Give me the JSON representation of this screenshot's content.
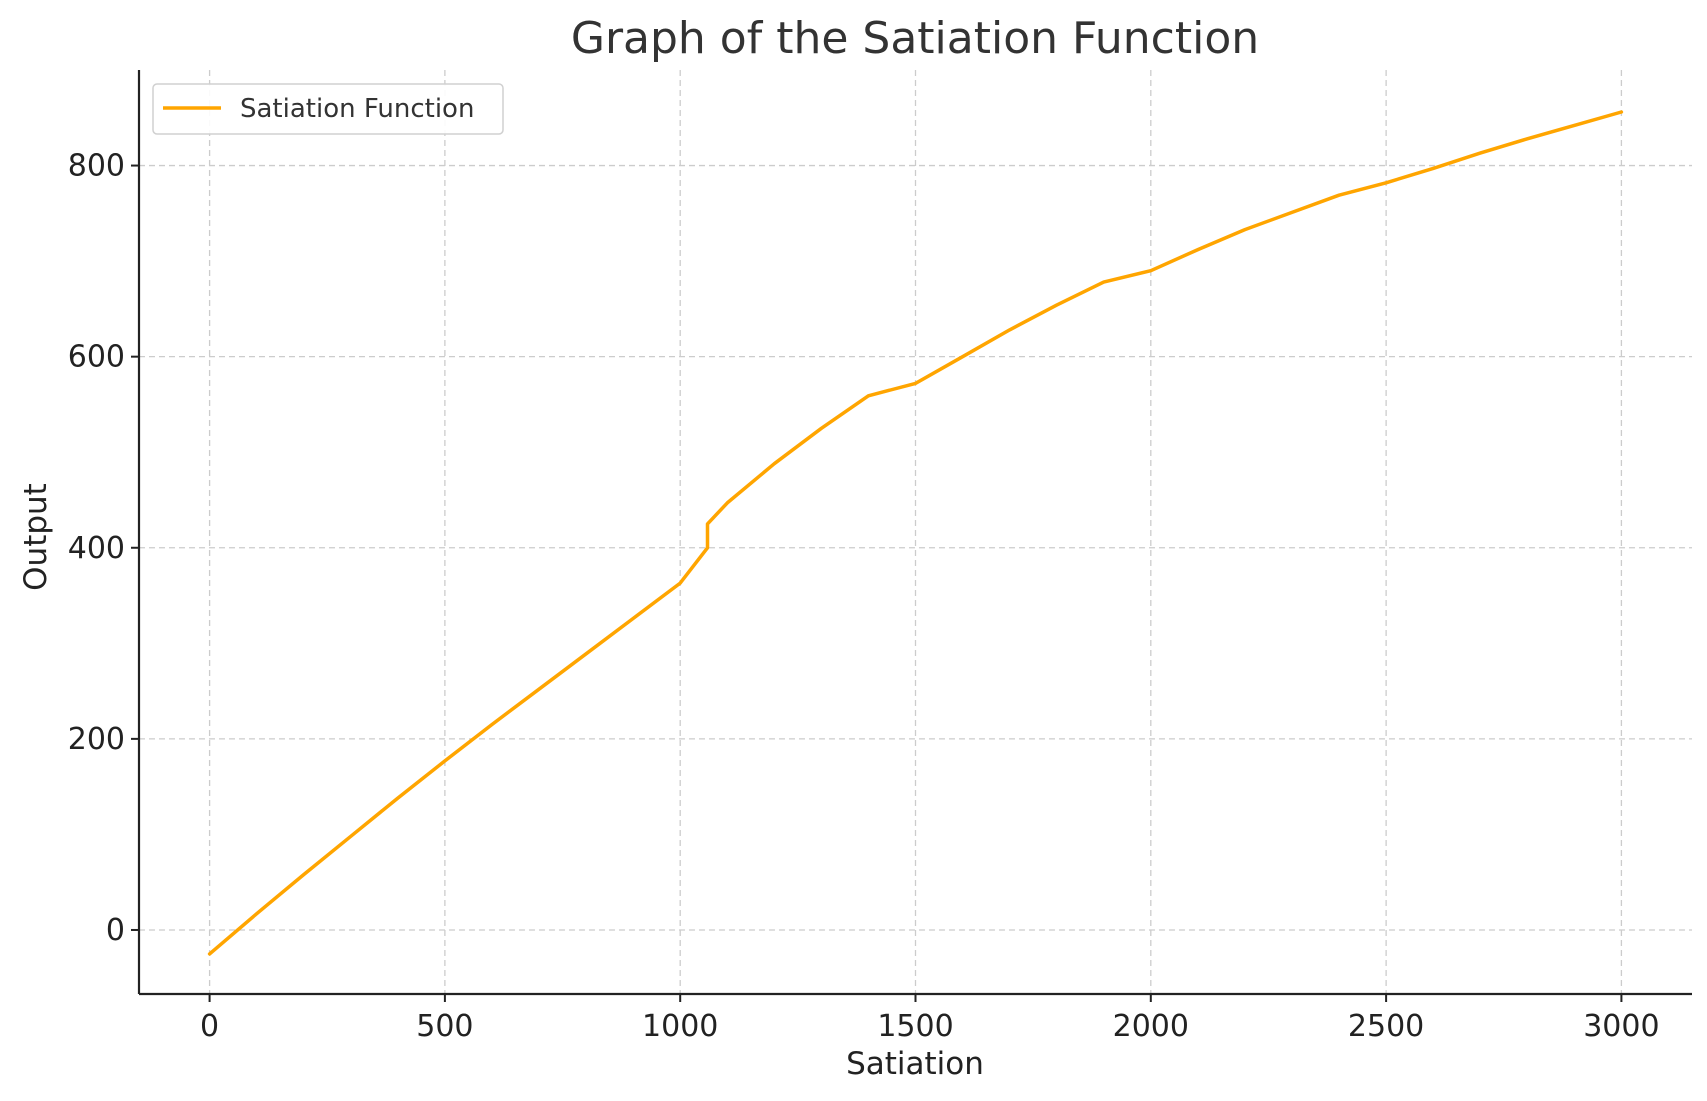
{
  "chart_data": {
    "type": "line",
    "title": "Graph of the Satiation Function",
    "xlabel": "Satiation",
    "ylabel": "Output",
    "xlim": [
      -150,
      3150
    ],
    "ylim": [
      -67,
      900
    ],
    "xticks": [
      0,
      500,
      1000,
      1500,
      2000,
      2500,
      3000
    ],
    "yticks": [
      0,
      200,
      400,
      600,
      800
    ],
    "grid": true,
    "legend_position": "top-left",
    "series": [
      {
        "name": "Satiation Function",
        "color": "#ffa500",
        "x": [
          0,
          100,
          200,
          300,
          400,
          500,
          600,
          700,
          800,
          900,
          1000,
          1058,
          1058,
          1100,
          1200,
          1300,
          1400,
          1500,
          1600,
          1700,
          1800,
          1900,
          2000,
          2100,
          2200,
          2300,
          2400,
          2500,
          2600,
          2700,
          2800,
          2900,
          3000
        ],
        "y": [
          -25,
          17,
          58,
          98,
          138,
          177,
          215,
          252,
          289,
          326,
          363,
          400,
          425,
          447,
          488,
          525,
          559,
          572,
          600,
          628,
          654,
          678,
          690,
          712,
          733,
          751,
          769,
          782,
          797,
          813,
          828,
          842,
          856
        ]
      }
    ]
  }
}
